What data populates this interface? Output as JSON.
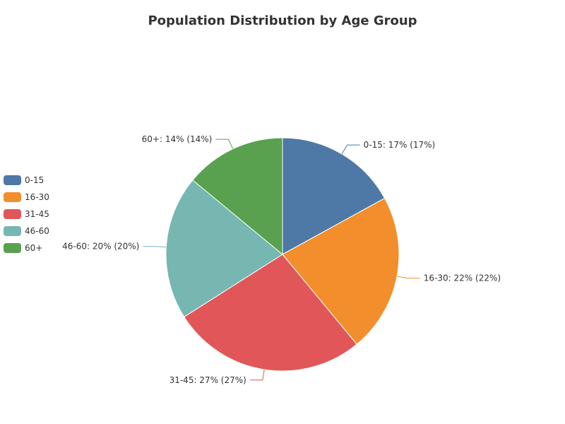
{
  "chart_data": {
    "type": "pie",
    "title": "Population Distribution by Age Group",
    "legend_position": "left",
    "slices": [
      {
        "label": "0-15",
        "value": 17,
        "color": "#4e79a7",
        "text": "0-15: 17% (17%)"
      },
      {
        "label": "16-30",
        "value": 22,
        "color": "#f28e2b",
        "text": "16-30: 22% (22%)"
      },
      {
        "label": "31-45",
        "value": 27,
        "color": "#e15759",
        "text": "31-45: 27% (27%)"
      },
      {
        "label": "46-60",
        "value": 20,
        "color": "#76b7b2",
        "text": "46-60: 20% (20%)"
      },
      {
        "label": "60+",
        "value": 14,
        "color": "#59a14f",
        "text": "60+: 14% (14%)"
      }
    ]
  }
}
